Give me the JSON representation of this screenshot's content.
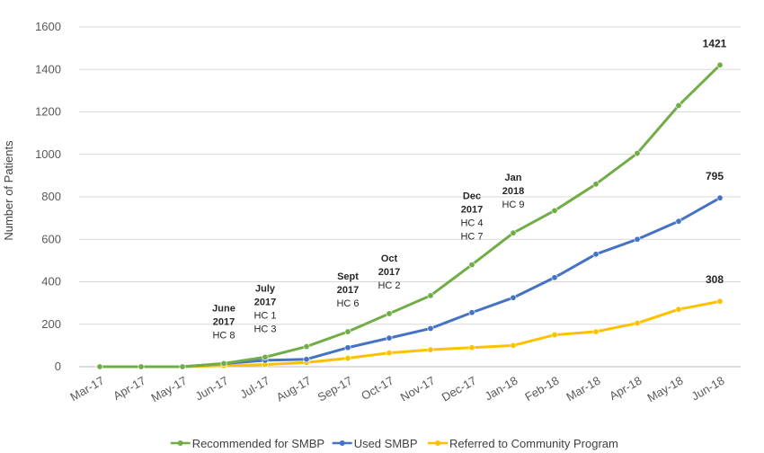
{
  "chart_data": {
    "type": "line",
    "title": "",
    "xlabel": "",
    "ylabel": "Number of Patients",
    "ylim": [
      0,
      1600
    ],
    "yticks": [
      0,
      200,
      400,
      600,
      800,
      1000,
      1200,
      1400,
      1600
    ],
    "grid": true,
    "legend_position": "bottom",
    "categories": [
      "Mar-17",
      "Apr-17",
      "May-17",
      "Jun-17",
      "Jul-17",
      "Aug-17",
      "Sep-17",
      "Oct-17",
      "Nov-17",
      "Dec-17",
      "Jan-18",
      "Feb-18",
      "Mar-18",
      "Apr-18",
      "May-18",
      "Jun-18"
    ],
    "series": [
      {
        "name": "Recommended for SMBP",
        "color": "#70ad47",
        "values": [
          0,
          0,
          0,
          15,
          45,
          95,
          165,
          250,
          335,
          480,
          630,
          735,
          860,
          1005,
          1230,
          1421
        ],
        "end_label": "1421"
      },
      {
        "name": "Used SMBP",
        "color": "#4472c4",
        "values": [
          0,
          0,
          0,
          15,
          30,
          35,
          90,
          135,
          180,
          255,
          325,
          420,
          530,
          600,
          685,
          795
        ],
        "end_label": "795"
      },
      {
        "name": "Referred to Community Program",
        "color": "#ffc000",
        "values": [
          0,
          0,
          0,
          5,
          10,
          20,
          40,
          65,
          80,
          90,
          100,
          150,
          165,
          205,
          270,
          308
        ],
        "end_label": "308"
      }
    ],
    "annotations": [
      {
        "index": 3,
        "lines": [
          "June",
          "2017",
          "HC 8"
        ]
      },
      {
        "index": 4,
        "lines": [
          "July",
          "2017",
          "HC 1",
          "HC 3"
        ]
      },
      {
        "index": 6,
        "lines": [
          "Sept",
          "2017",
          "HC 6"
        ]
      },
      {
        "index": 7,
        "lines": [
          "Oct",
          "2017",
          "HC 2"
        ]
      },
      {
        "index": 9,
        "lines": [
          "Dec",
          "2017",
          "HC 4",
          "HC 7"
        ]
      },
      {
        "index": 10,
        "lines": [
          "Jan",
          "2018",
          "HC 9"
        ]
      }
    ]
  }
}
